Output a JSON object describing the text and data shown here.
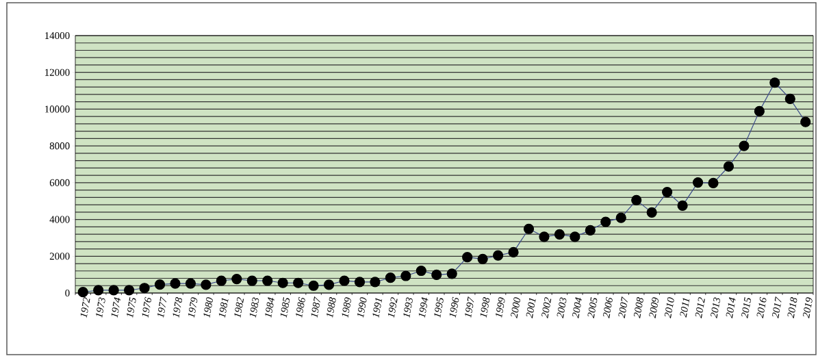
{
  "chart_data": {
    "type": "line",
    "categories": [
      "1972",
      "1973",
      "1974",
      "1975",
      "1976",
      "1977",
      "1978",
      "1979",
      "1980",
      "1981",
      "1982",
      "1983",
      "1984",
      "1985",
      "1986",
      "1987",
      "1988",
      "1989",
      "1990",
      "1991",
      "1992",
      "1993",
      "1994",
      "1995",
      "1996",
      "1997",
      "1998",
      "1999",
      "2000",
      "2001",
      "2002",
      "2003",
      "2004",
      "2005",
      "2006",
      "2007",
      "2008",
      "2009",
      "2010",
      "2011",
      "2012",
      "2013",
      "2014",
      "2015",
      "2016",
      "2017",
      "2018",
      "2019"
    ],
    "series": [
      {
        "color": "#3b4a8a",
        "values": [
          50,
          150,
          150,
          150,
          270,
          460,
          520,
          520,
          450,
          670,
          760,
          670,
          670,
          550,
          550,
          400,
          450,
          670,
          600,
          600,
          830,
          930,
          1210,
          990,
          1050,
          1950,
          1850,
          2040,
          2220,
          3490,
          3060,
          3190,
          3060,
          3410,
          3870,
          4090,
          5050,
          4380,
          5490,
          4750,
          6010,
          5980,
          6880,
          8000,
          9890,
          11440,
          10560,
          9300
        ]
      }
    ],
    "ylim": [
      0,
      14000
    ],
    "yticks": [
      0,
      2000,
      4000,
      6000,
      8000,
      10000,
      12000,
      14000
    ],
    "grid": "y",
    "marker": "circle",
    "line_style": "solid"
  }
}
